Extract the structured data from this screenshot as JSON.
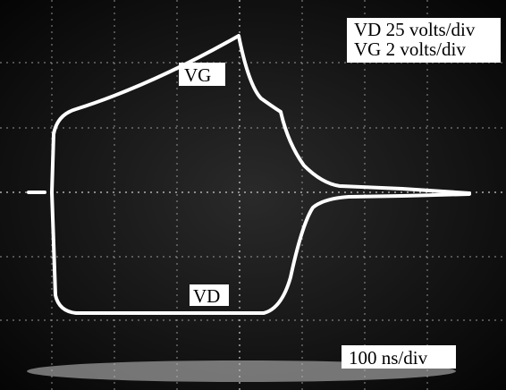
{
  "labels": {
    "vd_scale": "VD 25 volts/div",
    "vg_scale": "VG 2 volts/div",
    "vg_trace": "VG",
    "vd_trace": "VD",
    "time_scale": "100 ns/div"
  }
}
